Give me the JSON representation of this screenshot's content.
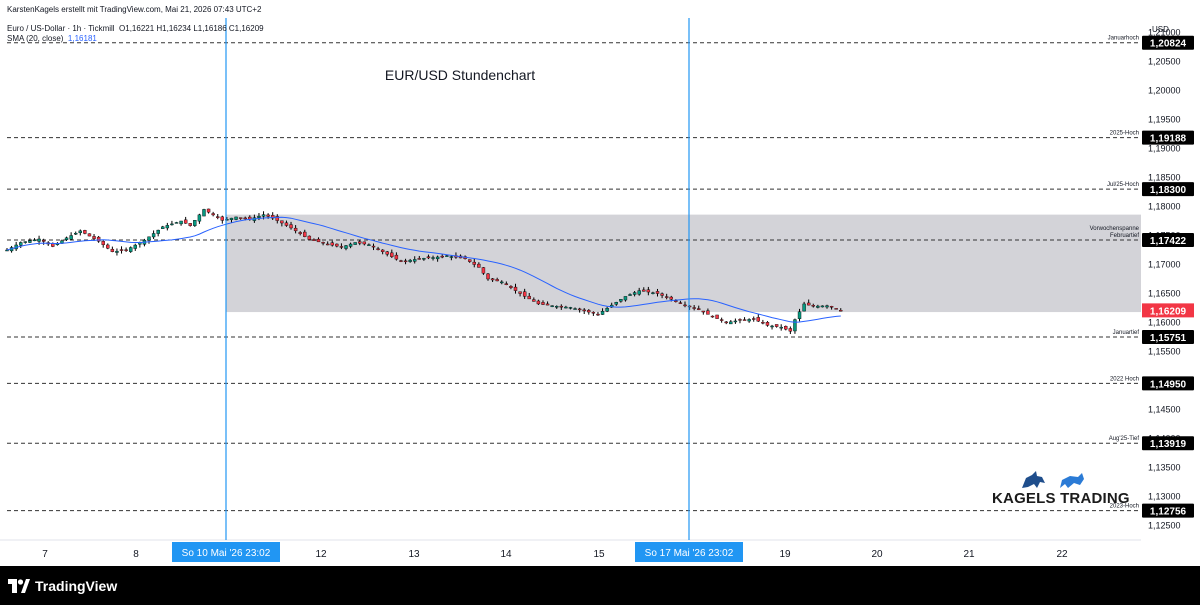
{
  "header": {
    "author_line": "KarstenKagels erstellt mit TradingView.com, Mai 21, 2026 07:43 UTC+2",
    "symbol_line": "Euro / US-Dollar · 1h · Tickmill",
    "ohlc": "O1,16221  H1,16234  L1,16186  C1,16209",
    "indicator_label": "SMA (20, close)",
    "indicator_value": "1,16181"
  },
  "footer": {
    "platform": "TradingView"
  },
  "branding": {
    "logo_text": "KAGELS TRADING"
  },
  "colors": {
    "up": "#089981",
    "down": "#f23645",
    "sma": "#2962ff",
    "zone": "#d1d1d6",
    "vline": "#2196f3",
    "price_label": "#f23645",
    "level_label": "#000000"
  },
  "chart_data": {
    "type": "candlestick",
    "title": "EUR/USD Stundenchart",
    "currency": "USD",
    "x_ticks": [
      "7",
      "8",
      "12",
      "13",
      "14",
      "15",
      "19",
      "20",
      "21",
      "22"
    ],
    "y_ticks": [
      "1,21000",
      "1,20500",
      "1,20000",
      "1,19500",
      "1,19000",
      "1,18500",
      "1,18000",
      "1,17500",
      "1,17000",
      "1,16500",
      "1,16000",
      "1,15500",
      "1,15000",
      "1,14500",
      "1,14000",
      "1,13500",
      "1,13000",
      "1,12500"
    ],
    "y_range": [
      1.1225,
      1.2125
    ],
    "current_price": "1,16209",
    "levels": [
      {
        "name": "Januarhoch",
        "value": "1,20824"
      },
      {
        "name": "2025-Hoch",
        "value": "1,19188"
      },
      {
        "name": "Jul/25-Hoch",
        "value": "1,18300"
      },
      {
        "name": "Vorwochenspanne\nFebruartief",
        "value": "1,17422"
      },
      {
        "name": "Januartief",
        "value": "1,15751"
      },
      {
        "name": "2022 Hoch",
        "value": "1,14950"
      },
      {
        "name": "Aug'25-Tief",
        "value": "1,13919"
      },
      {
        "name": "2023-Hoch",
        "value": "1,12756"
      }
    ],
    "zone": {
      "name": "Vorwochenspanne",
      "from": "So 10 Mai '26  23:02",
      "high": 1.1786,
      "low": 1.1618
    },
    "vertical_markers": [
      "So 10 Mai '26   23:02",
      "So 17 Mai '26   23:02"
    ],
    "series": [
      {
        "path": [
          [
            0,
            1.1725
          ],
          [
            3,
            1.1738
          ],
          [
            7,
            1.1744
          ],
          [
            10,
            1.1731
          ],
          [
            13,
            1.1746
          ],
          [
            16,
            1.1758
          ],
          [
            20,
            1.174
          ],
          [
            23,
            1.1722
          ],
          [
            26,
            1.1725
          ],
          [
            30,
            1.1742
          ],
          [
            34,
            1.1765
          ],
          [
            38,
            1.1775
          ],
          [
            40,
            1.1767
          ],
          [
            43,
            1.1795
          ],
          [
            47,
            1.1776
          ],
          [
            50,
            1.1782
          ],
          [
            53,
            1.1778
          ],
          [
            56,
            1.1786
          ],
          [
            58,
            1.178
          ],
          [
            62,
            1.1763
          ],
          [
            66,
            1.1743
          ],
          [
            70,
            1.1735
          ],
          [
            73,
            1.173
          ],
          [
            76,
            1.1738
          ],
          [
            79,
            1.1734
          ],
          [
            82,
            1.1722
          ],
          [
            86,
            1.1705
          ],
          [
            90,
            1.171
          ],
          [
            93,
            1.1712
          ],
          [
            96,
            1.1715
          ],
          [
            100,
            1.171
          ],
          [
            103,
            1.1695
          ],
          [
            105,
            1.1675
          ],
          [
            108,
            1.167
          ],
          [
            110,
            1.166
          ],
          [
            113,
            1.1645
          ],
          [
            116,
            1.1632
          ],
          [
            120,
            1.1628
          ],
          [
            123,
            1.1626
          ],
          [
            126,
            1.162
          ],
          [
            129,
            1.1614
          ],
          [
            132,
            1.163
          ],
          [
            135,
            1.1645
          ],
          [
            138,
            1.1655
          ],
          [
            142,
            1.165
          ],
          [
            145,
            1.164
          ],
          [
            148,
            1.163
          ],
          [
            151,
            1.1622
          ],
          [
            154,
            1.161
          ],
          [
            157,
            1.16
          ],
          [
            160,
            1.1604
          ],
          [
            163,
            1.1606
          ],
          [
            166,
            1.1595
          ],
          [
            169,
            1.1592
          ],
          [
            171,
            1.1585
          ],
          [
            172,
            1.1605
          ],
          [
            174,
            1.1632
          ],
          [
            176,
            1.1628
          ],
          [
            179,
            1.1629
          ],
          [
            182,
            1.1621
          ]
        ]
      }
    ]
  }
}
